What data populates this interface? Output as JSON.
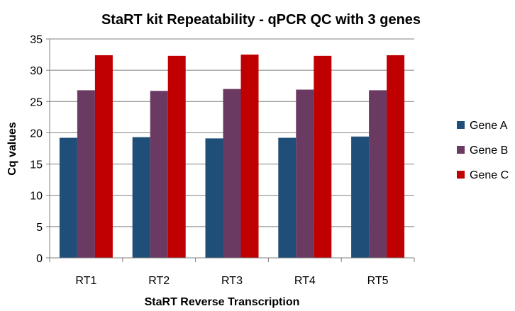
{
  "chart_data": {
    "type": "bar",
    "title": "StaRT kit Repeatability - qPCR QC with 3 genes",
    "xlabel": "StaRT Reverse Transcription",
    "ylabel": "Cq values",
    "ylim": [
      0,
      35
    ],
    "yticks": [
      "0",
      "5",
      "10",
      "15",
      "20",
      "25",
      "30",
      "35"
    ],
    "grid": true,
    "legend_position": "right",
    "categories": [
      "RT1",
      "RT2",
      "RT3",
      "RT4",
      "RT5"
    ],
    "series": [
      {
        "name": "Gene A",
        "color": "#1f4e79",
        "values": [
          19.2,
          19.3,
          19.1,
          19.2,
          19.4
        ]
      },
      {
        "name": "Gene B",
        "color": "#6b3a63",
        "values": [
          26.8,
          26.7,
          27.0,
          26.9,
          26.8
        ]
      },
      {
        "name": "Gene C",
        "color": "#c00000",
        "values": [
          32.4,
          32.3,
          32.5,
          32.3,
          32.4
        ]
      }
    ]
  }
}
